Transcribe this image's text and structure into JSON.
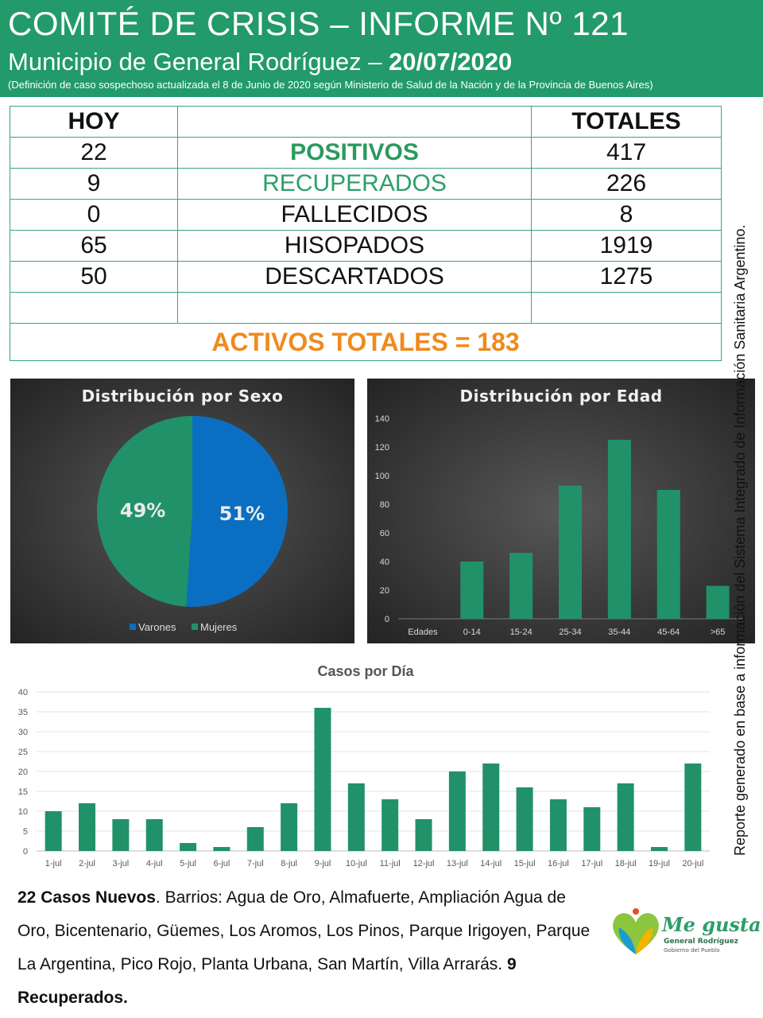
{
  "header": {
    "title": "COMITÉ DE CRISIS – INFORME Nº 121",
    "subtitle_prefix": "Municipio de General Rodríguez – ",
    "date": "20/07/2020",
    "note": "(Definición de caso sospechoso actualizada el 8 de Junio de 2020 según Ministerio de Salud de la Nación y de la Provincia de Buenos Aires)"
  },
  "summary": {
    "col_today": "HOY",
    "col_totals": "TOTALES",
    "rows": [
      {
        "label": "POSITIVOS",
        "today": "22",
        "total": "417"
      },
      {
        "label": "RECUPERADOS",
        "today": "9",
        "total": "226"
      },
      {
        "label": "FALLECIDOS",
        "today": "0",
        "total": "8"
      },
      {
        "label": "HISOPADOS",
        "today": "65",
        "total": "1919"
      },
      {
        "label": "DESCARTADOS",
        "today": "50",
        "total": "1275"
      }
    ],
    "active": "ACTIVOS TOTALES = 183"
  },
  "side_note": "Reporte generado en base a información del Sistema Integrado de Información Sanitaria Argentino.",
  "chart_data": [
    {
      "type": "pie",
      "title": "Distribución por Sexo",
      "categories": [
        "Varones",
        "Mujeres"
      ],
      "values": [
        51,
        49
      ],
      "labels": [
        "51%",
        "49%"
      ],
      "colors": [
        "#0a6fc2",
        "#21916a"
      ],
      "legend": "bottom"
    },
    {
      "type": "bar",
      "title": "Distribución por Edad",
      "categories": [
        "Edades",
        "0-14",
        "15-24",
        "25-34",
        "35-44",
        "45-64",
        ">65"
      ],
      "values": [
        0,
        40,
        46,
        93,
        125,
        90,
        23
      ],
      "ylim": [
        0,
        140
      ],
      "yticks": [
        0,
        20,
        40,
        60,
        80,
        100,
        120,
        140
      ],
      "color": "#21916a"
    },
    {
      "type": "bar",
      "title": "Casos por Día",
      "categories": [
        "1-jul",
        "2-jul",
        "3-jul",
        "4-jul",
        "5-jul",
        "6-jul",
        "7-jul",
        "8-jul",
        "9-jul",
        "10-jul",
        "11-jul",
        "12-jul",
        "13-jul",
        "14-jul",
        "15-jul",
        "16-jul",
        "17-jul",
        "18-jul",
        "19-jul",
        "20-jul"
      ],
      "values": [
        10,
        12,
        8,
        8,
        2,
        1,
        6,
        12,
        36,
        17,
        13,
        8,
        20,
        22,
        16,
        13,
        11,
        17,
        1,
        22
      ],
      "ylim": [
        0,
        40
      ],
      "yticks": [
        0,
        5,
        10,
        15,
        20,
        25,
        30,
        35,
        40
      ],
      "grid": true,
      "color": "#21916a"
    }
  ],
  "footer": {
    "new_cases": "22 Casos Nuevos",
    "neighborhoods": ". Barrios: Agua de Oro, Almafuerte, Ampliación Agua de Oro, Bicentenario, Güemes, Los Aromos, Los Pinos, Parque Irigoyen, Parque La Argentina, Pico Rojo, Planta Urbana, San Martín, Villa Arrarás. ",
    "recovered": "9 Recuperados."
  },
  "logo": {
    "text": "Me gusta",
    "sub": "General Rodríguez",
    "sub2": "Gobierno del Pueblo"
  }
}
